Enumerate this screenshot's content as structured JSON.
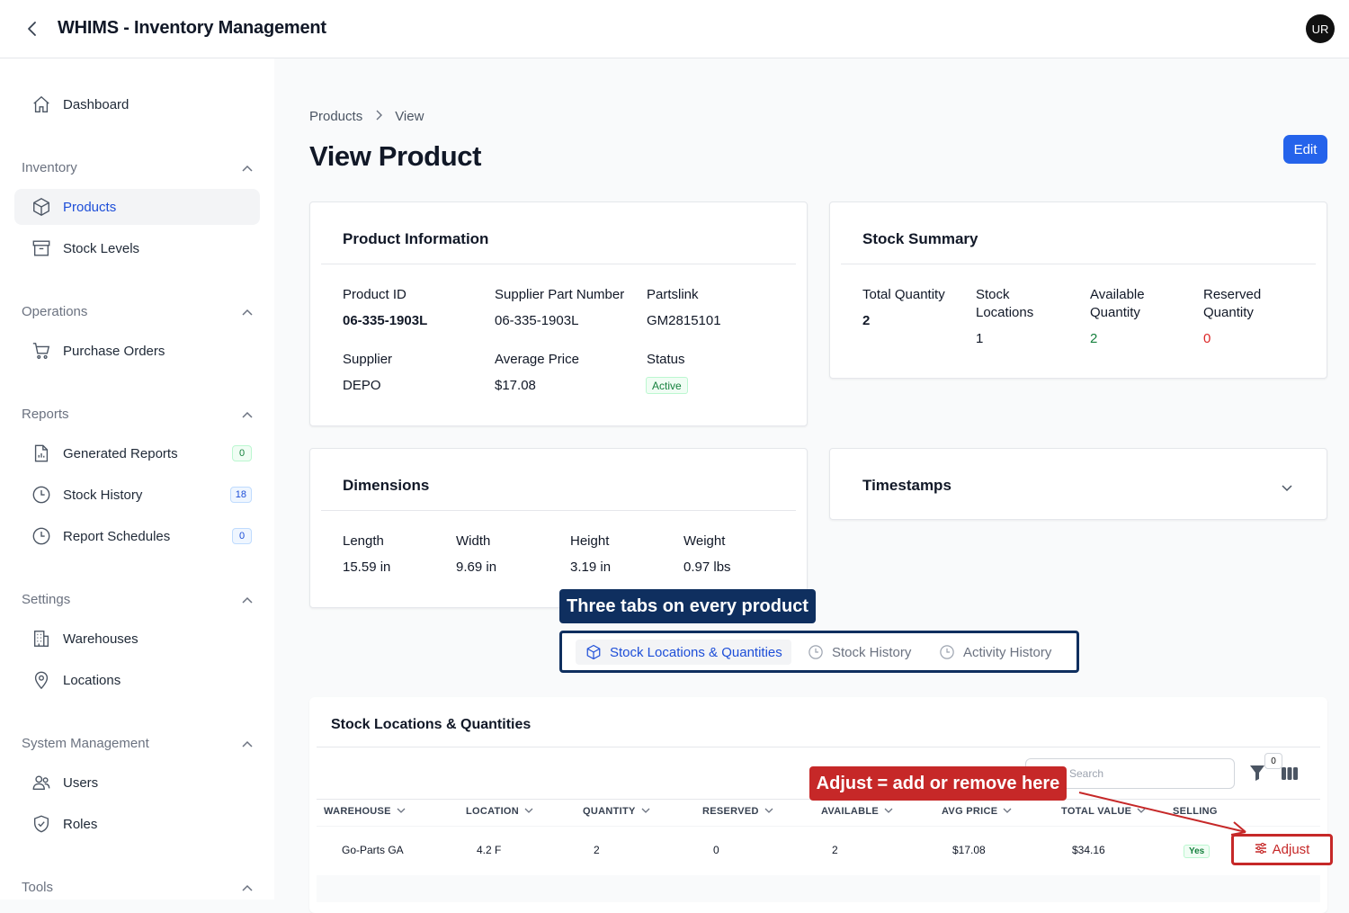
{
  "header": {
    "title": "WHIMS - Inventory Management",
    "avatar": "UR"
  },
  "sidebar": {
    "dashboard": "Dashboard",
    "groups": {
      "inventory": "Inventory",
      "operations": "Operations",
      "reports": "Reports",
      "settings": "Settings",
      "system": "System Management",
      "tools": "Tools"
    },
    "items": {
      "products": "Products",
      "stock_levels": "Stock Levels",
      "purchase_orders": "Purchase Orders",
      "generated_reports": "Generated Reports",
      "generated_reports_count": "0",
      "stock_history": "Stock History",
      "stock_history_count": "18",
      "report_schedules": "Report Schedules",
      "report_schedules_count": "0",
      "warehouses": "Warehouses",
      "locations": "Locations",
      "users": "Users",
      "roles": "Roles"
    }
  },
  "breadcrumb": {
    "parent": "Products",
    "current": "View"
  },
  "page": {
    "title": "View Product",
    "edit_label": "Edit"
  },
  "product_info": {
    "title": "Product Information",
    "product_id_label": "Product ID",
    "product_id": "06-335-1903L",
    "supplier_part_label": "Supplier Part Number",
    "supplier_part": "06-335-1903L",
    "partslink_label": "Partslink",
    "partslink": "GM2815101",
    "supplier_label": "Supplier",
    "supplier": "DEPO",
    "avg_price_label": "Average Price",
    "avg_price": "$17.08",
    "status_label": "Status",
    "status": "Active"
  },
  "stock_summary": {
    "title": "Stock Summary",
    "total_qty_label": "Total Quantity",
    "total_qty": "2",
    "stock_locations_label": "Stock Locations",
    "stock_locations": "1",
    "available_label": "Available Quantity",
    "available": "2",
    "reserved_label": "Reserved Quantity",
    "reserved": "0"
  },
  "dimensions": {
    "title": "Dimensions",
    "length_label": "Length",
    "length": "15.59 in",
    "width_label": "Width",
    "width": "9.69 in",
    "height_label": "Height",
    "height": "3.19 in",
    "weight_label": "Weight",
    "weight": "0.97 lbs"
  },
  "timestamps": {
    "title": "Timestamps"
  },
  "annotations": {
    "tabs_callout": "Three tabs on every product",
    "adjust_callout": "Adjust = add or remove here"
  },
  "tabs": [
    "Stock Locations & Quantities",
    "Stock History",
    "Activity History"
  ],
  "table": {
    "title": "Stock Locations & Quantities",
    "search_placeholder": "Search",
    "filter_count": "0",
    "columns": [
      "WAREHOUSE",
      "LOCATION",
      "QUANTITY",
      "RESERVED",
      "AVAILABLE",
      "AVG PRICE",
      "TOTAL VALUE",
      "SELLING"
    ],
    "rows": [
      {
        "warehouse": "Go-Parts GA",
        "location": "4.2 F",
        "quantity": "2",
        "reserved": "0",
        "available": "2",
        "avg_price": "$17.08",
        "total_value": "$34.16",
        "selling": "Yes",
        "action": "Adjust"
      }
    ]
  },
  "colors": {
    "accent": "#2563eb",
    "navy": "#0f2f5f",
    "red": "#c62828",
    "green": "#15803d",
    "orange_red": "#dc2626"
  }
}
